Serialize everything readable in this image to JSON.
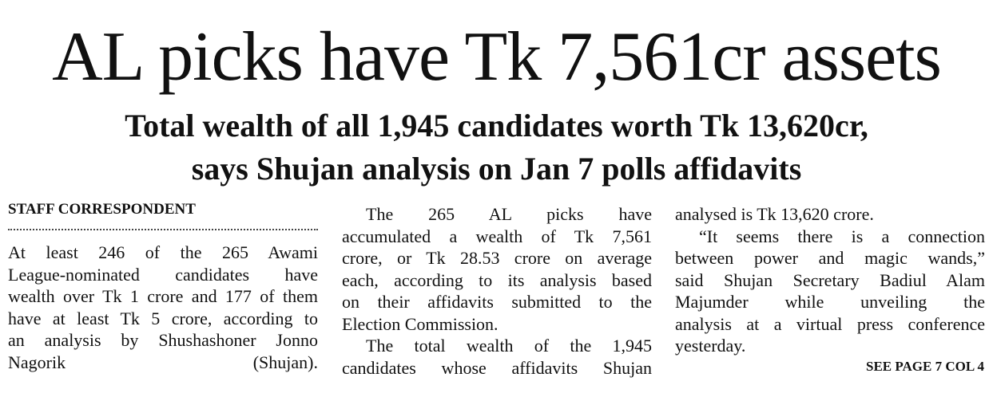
{
  "headline": "AL picks have Tk 7,561cr assets",
  "subheadline": [
    "Total wealth of all 1,945 candidates worth Tk 13,620cr,",
    "says Shujan analysis on Jan 7 polls affidavits"
  ],
  "byline": "STAFF CORRESPONDENT",
  "columns": [
    [
      [
        "At least 246 of the 265 Awami",
        "League-nominated candidates have",
        "wealth over Tk 1 crore and 177 of them",
        "have at least Tk 5 crore, according to",
        "an analysis by Shushashoner Jonno",
        "Nagorik (Shujan)."
      ]
    ],
    [
      [
        "The 265 AL picks have",
        "accumulated a wealth of Tk 7,561",
        "crore, or Tk 28.53 crore on average",
        "each, according to its analysis based",
        "on their affidavits submitted to the",
        "Election Commission."
      ],
      [
        "The total wealth of the 1,945",
        "candidates whose affidavits Shujan"
      ]
    ],
    [
      [
        "analysed is Tk 13,620 crore."
      ],
      [
        "“It seems there is a connection",
        "between power and magic wands,”",
        "said Shujan Secretary Badiul Alam",
        "Majumder while unveiling the",
        "analysis at a virtual press conference",
        "yesterday."
      ]
    ]
  ],
  "jump": "SEE PAGE 7 COL 4"
}
